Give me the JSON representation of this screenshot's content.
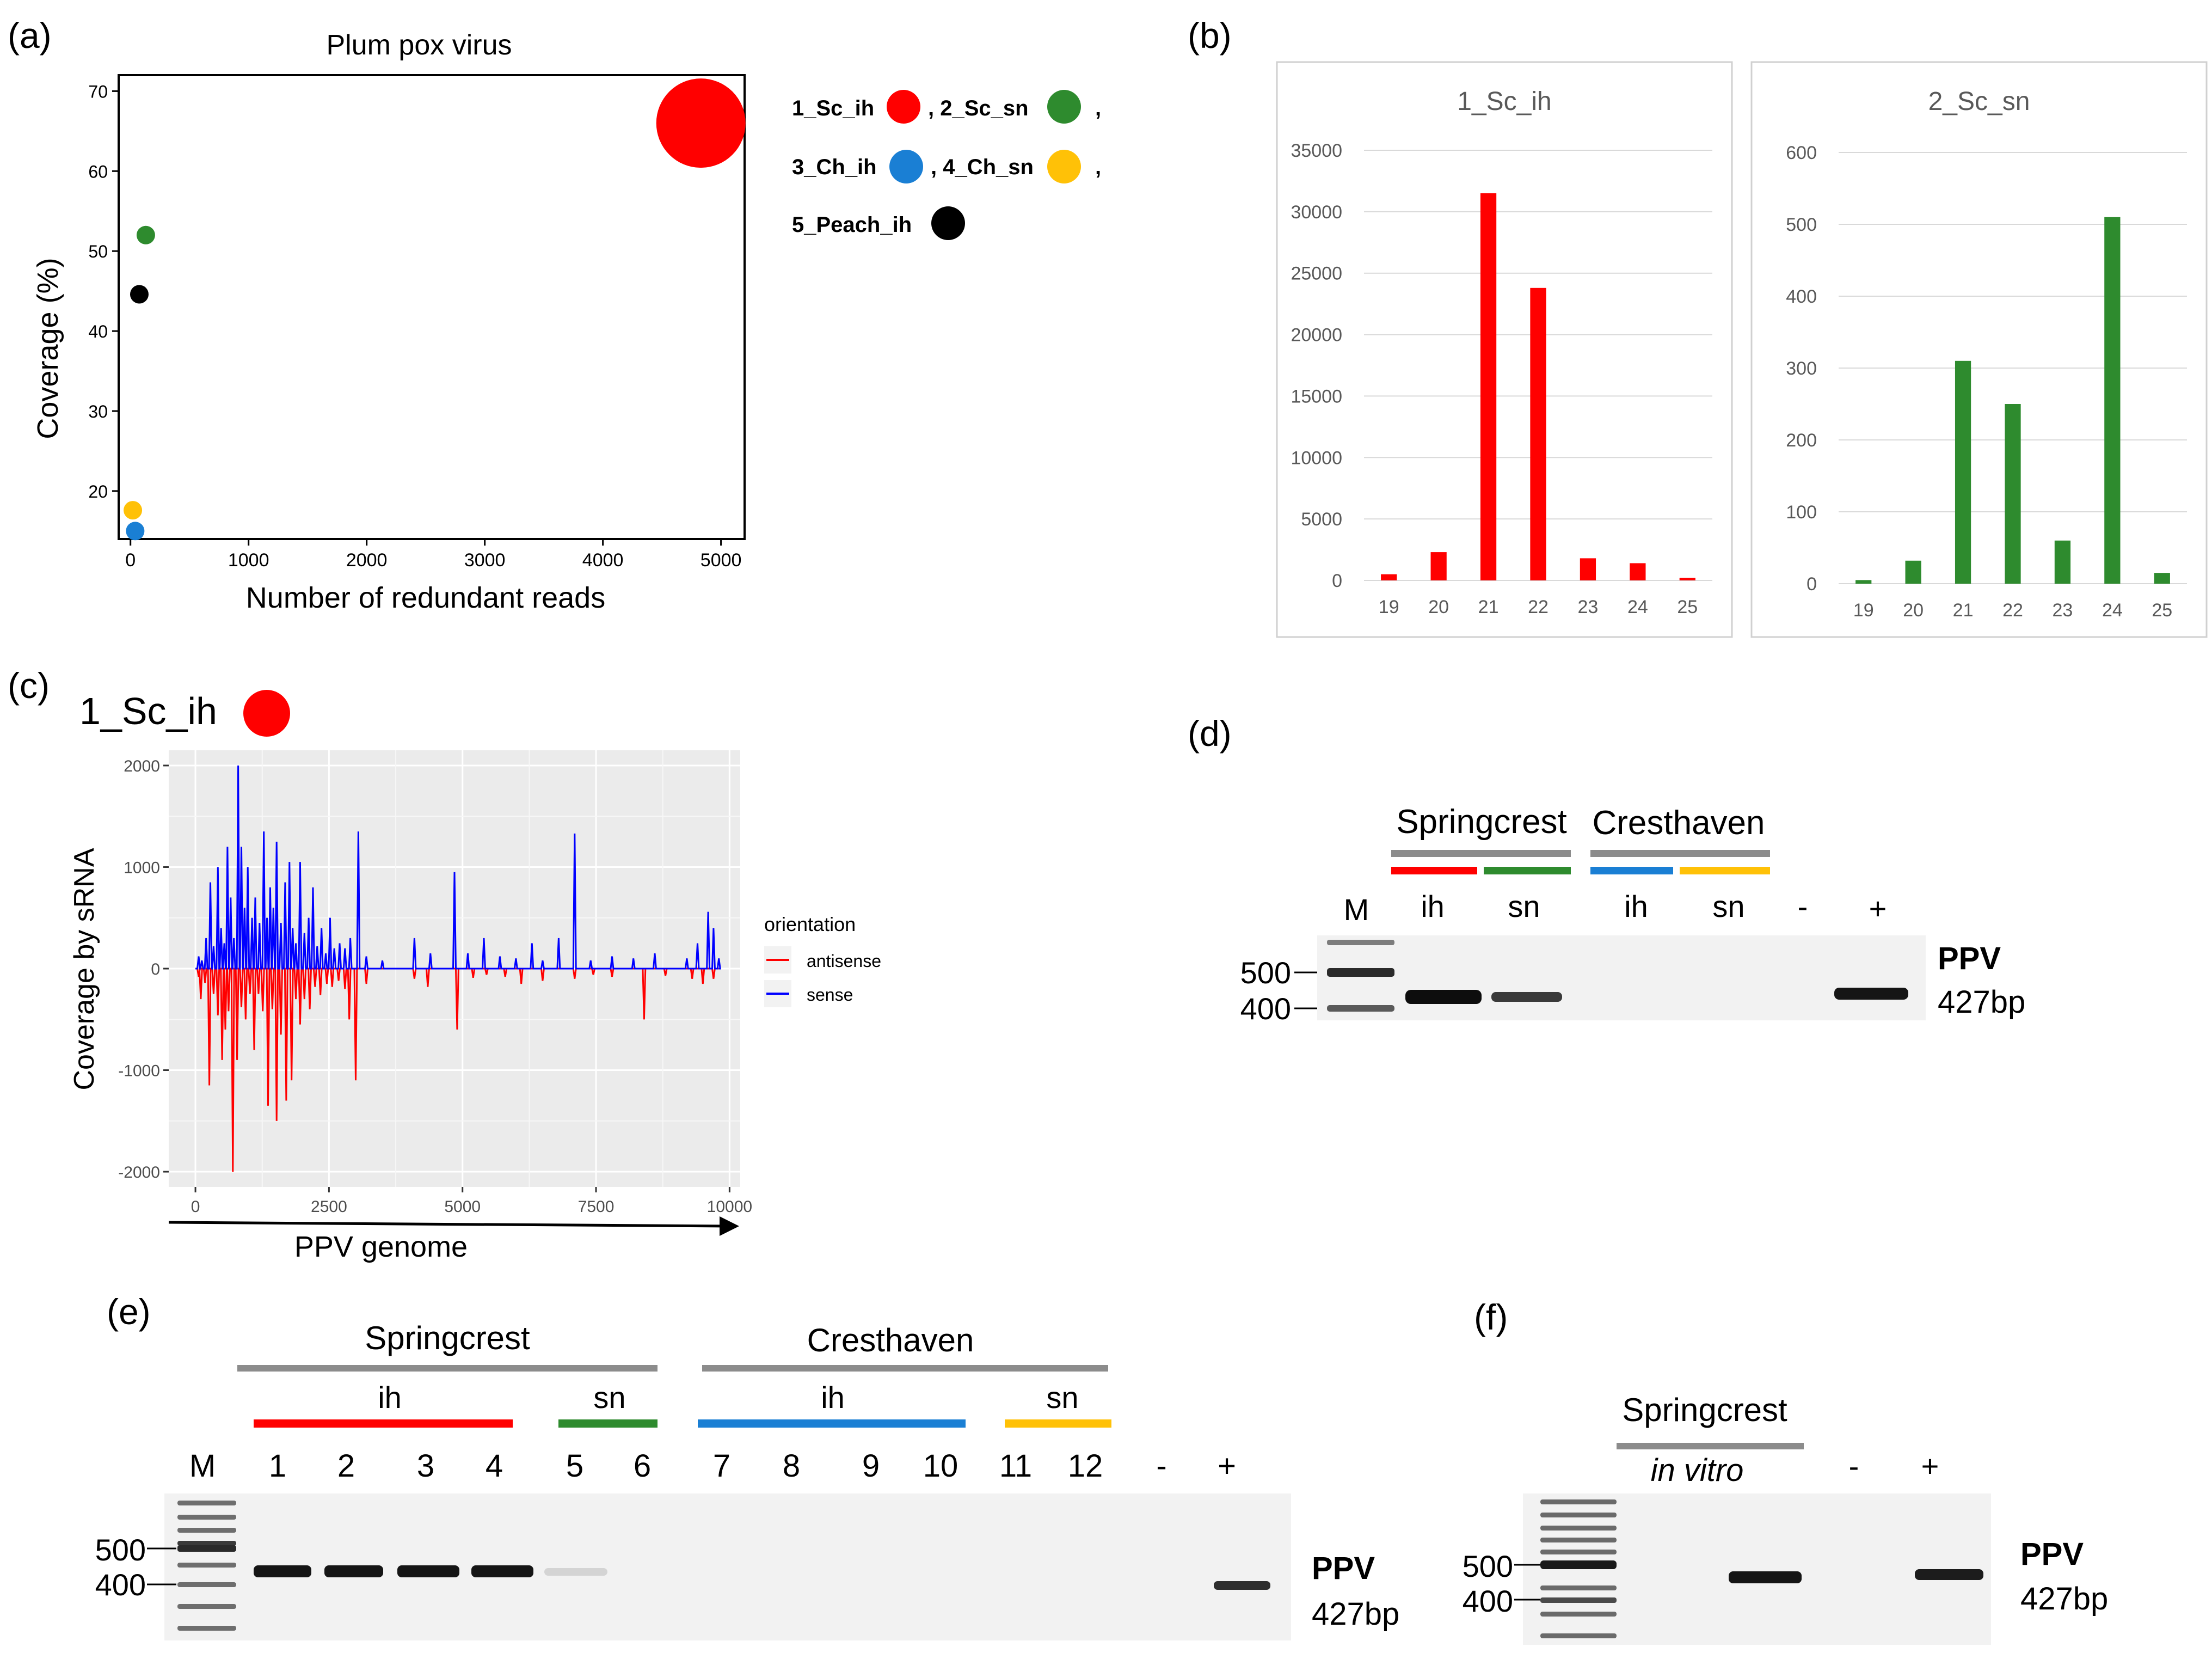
{
  "panels": {
    "a": "(a)",
    "b": "(b)",
    "c": "(c)",
    "d": "(d)",
    "e": "(e)",
    "f": "(f)"
  },
  "colors": {
    "sc_ih": "#ff0000",
    "sc_sn": "#2e8b2e",
    "ch_ih": "#1a7fd4",
    "ch_sn": "#ffc107",
    "peach_ih": "#000000",
    "sense": "#0000ff",
    "antisense": "#ff0000"
  },
  "chart_data": [
    {
      "id": "a",
      "type": "scatter",
      "title": "Plum pox virus",
      "xlabel": "Number of redundant reads",
      "ylabel": "Coverage (%)",
      "xlim": [
        -100,
        5200
      ],
      "ylim": [
        14,
        72
      ],
      "xticks": [
        0,
        1000,
        2000,
        3000,
        4000,
        5000
      ],
      "yticks": [
        20,
        30,
        40,
        50,
        60,
        70
      ],
      "points": [
        {
          "name": "1_Sc_ih",
          "x": 4830,
          "y": 66,
          "color": "#ff0000",
          "size": "large"
        },
        {
          "name": "2_Sc_sn",
          "x": 130,
          "y": 52,
          "color": "#2e8b2e",
          "size": "small"
        },
        {
          "name": "3_Ch_ih",
          "x": 40,
          "y": 15,
          "color": "#1a7fd4",
          "size": "small"
        },
        {
          "name": "4_Ch_sn",
          "x": 20,
          "y": 17.6,
          "color": "#ffc107",
          "size": "small"
        },
        {
          "name": "5_Peach_ih",
          "x": 75,
          "y": 44.6,
          "color": "#000000",
          "size": "small"
        }
      ],
      "legend": {
        "rows": [
          [
            {
              "label": "1_Sc_ih",
              "color": "#ff0000"
            },
            {
              "label": ", 2_Sc_sn",
              "color": "#2e8b2e"
            },
            {
              "label": ","
            }
          ],
          [
            {
              "label": "3_Ch_ih",
              "color": "#1a7fd4"
            },
            {
              "label": ", 4_Ch_sn",
              "color": "#ffc107"
            },
            {
              "label": ","
            }
          ],
          [
            {
              "label": "5_Peach_ih",
              "color": "#000000"
            }
          ]
        ]
      }
    },
    {
      "id": "b1",
      "type": "bar",
      "title": "1_Sc_ih",
      "categories": [
        "19",
        "20",
        "21",
        "22",
        "23",
        "24",
        "25"
      ],
      "values": [
        500,
        2300,
        31500,
        23800,
        1800,
        1400,
        200
      ],
      "ylim": [
        0,
        35000
      ],
      "yticks": [
        0,
        5000,
        10000,
        15000,
        20000,
        25000,
        30000,
        35000
      ],
      "color": "#ff0000"
    },
    {
      "id": "b2",
      "type": "bar",
      "title": "2_Sc_sn",
      "categories": [
        "19",
        "20",
        "21",
        "22",
        "23",
        "24",
        "25"
      ],
      "values": [
        5,
        32,
        310,
        250,
        60,
        510,
        15
      ],
      "ylim": [
        0,
        600
      ],
      "yticks": [
        0,
        100,
        200,
        300,
        400,
        500,
        600
      ],
      "color": "#2e8b2e"
    },
    {
      "id": "c",
      "type": "line",
      "sample": "1_Sc_ih",
      "xlabel": "PPV genome",
      "ylabel": "Coverage by sRNA",
      "xlim": [
        -500,
        10200
      ],
      "ylim": [
        -2150,
        2150
      ],
      "xticks": [
        0,
        2500,
        5000,
        7500,
        10000
      ],
      "yticks": [
        -2000,
        -1000,
        0,
        1000,
        2000
      ],
      "legend_title": "orientation",
      "series": [
        {
          "name": "antisense",
          "color": "#ff0000",
          "peaks": [
            [
              60,
              -80
            ],
            [
              100,
              -300
            ],
            [
              180,
              -140
            ],
            [
              260,
              -1150
            ],
            [
              340,
              -250
            ],
            [
              420,
              -460
            ],
            [
              500,
              -900
            ],
            [
              560,
              -600
            ],
            [
              620,
              -420
            ],
            [
              700,
              -2000
            ],
            [
              780,
              -900
            ],
            [
              860,
              -380
            ],
            [
              940,
              -500
            ],
            [
              1020,
              -250
            ],
            [
              1100,
              -800
            ],
            [
              1180,
              -250
            ],
            [
              1260,
              -420
            ],
            [
              1360,
              -1350
            ],
            [
              1440,
              -400
            ],
            [
              1520,
              -1500
            ],
            [
              1600,
              -650
            ],
            [
              1700,
              -1300
            ],
            [
              1800,
              -1100
            ],
            [
              1880,
              -300
            ],
            [
              1960,
              -550
            ],
            [
              2040,
              -300
            ],
            [
              2140,
              -400
            ],
            [
              2240,
              -180
            ],
            [
              2340,
              -260
            ],
            [
              2460,
              -150
            ],
            [
              2560,
              -180
            ],
            [
              2680,
              -120
            ],
            [
              2800,
              -200
            ],
            [
              2880,
              -500
            ],
            [
              3000,
              -1100
            ],
            [
              3200,
              -150
            ],
            [
              4100,
              -100
            ],
            [
              4350,
              -180
            ],
            [
              4900,
              -600
            ],
            [
              5200,
              -90
            ],
            [
              5450,
              -60
            ],
            [
              5800,
              -80
            ],
            [
              6100,
              -150
            ],
            [
              6500,
              -120
            ],
            [
              7100,
              -100
            ],
            [
              7450,
              -60
            ],
            [
              7800,
              -80
            ],
            [
              8400,
              -500
            ],
            [
              8800,
              -70
            ],
            [
              9300,
              -100
            ],
            [
              9500,
              -150
            ],
            [
              9700,
              -100
            ]
          ]
        },
        {
          "name": "sense",
          "color": "#0000ff",
          "peaks": [
            [
              60,
              120
            ],
            [
              120,
              80
            ],
            [
              200,
              300
            ],
            [
              280,
              850
            ],
            [
              340,
              220
            ],
            [
              420,
              1000
            ],
            [
              480,
              400
            ],
            [
              540,
              250
            ],
            [
              600,
              1200
            ],
            [
              660,
              700
            ],
            [
              720,
              300
            ],
            [
              800,
              2000
            ],
            [
              860,
              1200
            ],
            [
              920,
              600
            ],
            [
              980,
              1000
            ],
            [
              1060,
              500
            ],
            [
              1120,
              700
            ],
            [
              1200,
              450
            ],
            [
              1280,
              1350
            ],
            [
              1340,
              500
            ],
            [
              1400,
              800
            ],
            [
              1460,
              600
            ],
            [
              1520,
              1250
            ],
            [
              1600,
              450
            ],
            [
              1680,
              850
            ],
            [
              1760,
              1050
            ],
            [
              1820,
              400
            ],
            [
              1880,
              250
            ],
            [
              1960,
              1050
            ],
            [
              2040,
              350
            ],
            [
              2120,
              500
            ],
            [
              2200,
              800
            ],
            [
              2280,
              220
            ],
            [
              2360,
              400
            ],
            [
              2440,
              150
            ],
            [
              2520,
              500
            ],
            [
              2600,
              200
            ],
            [
              2700,
              250
            ],
            [
              2800,
              200
            ],
            [
              2900,
              300
            ],
            [
              3050,
              1350
            ],
            [
              3200,
              120
            ],
            [
              3500,
              80
            ],
            [
              4100,
              300
            ],
            [
              4400,
              150
            ],
            [
              4850,
              950
            ],
            [
              5100,
              150
            ],
            [
              5400,
              300
            ],
            [
              5700,
              120
            ],
            [
              6000,
              100
            ],
            [
              6300,
              250
            ],
            [
              6500,
              80
            ],
            [
              6800,
              300
            ],
            [
              7100,
              1330
            ],
            [
              7400,
              80
            ],
            [
              7800,
              120
            ],
            [
              8200,
              100
            ],
            [
              8600,
              150
            ],
            [
              9200,
              100
            ],
            [
              9400,
              250
            ],
            [
              9600,
              560
            ],
            [
              9700,
              400
            ],
            [
              9800,
              100
            ]
          ]
        }
      ]
    }
  ],
  "panel_c": {
    "sample_label": "1_Sc_ih"
  },
  "gel_d": {
    "cultivars": [
      "Springcrest",
      "Cresthaven"
    ],
    "lanes": [
      "M",
      "ih",
      "sn",
      "ih",
      "sn",
      "-",
      "+"
    ],
    "markers": [
      "500",
      "400"
    ],
    "target": "PPV",
    "size": "427bp"
  },
  "gel_e": {
    "cultivars": [
      "Springcrest",
      "Cresthaven"
    ],
    "groups": [
      "ih",
      "sn",
      "ih",
      "sn"
    ],
    "lanes": [
      "M",
      "1",
      "2",
      "3",
      "4",
      "5",
      "6",
      "7",
      "8",
      "9",
      "10",
      "11",
      "12",
      "-",
      "+"
    ],
    "markers": [
      "500",
      "400"
    ],
    "target": "PPV",
    "size": "427bp"
  },
  "gel_f": {
    "cultivar": "Springcrest",
    "condition": "in vitro",
    "lanes": [
      "-",
      "+"
    ],
    "markers": [
      "500",
      "400"
    ],
    "target": "PPV",
    "size": "427bp"
  }
}
